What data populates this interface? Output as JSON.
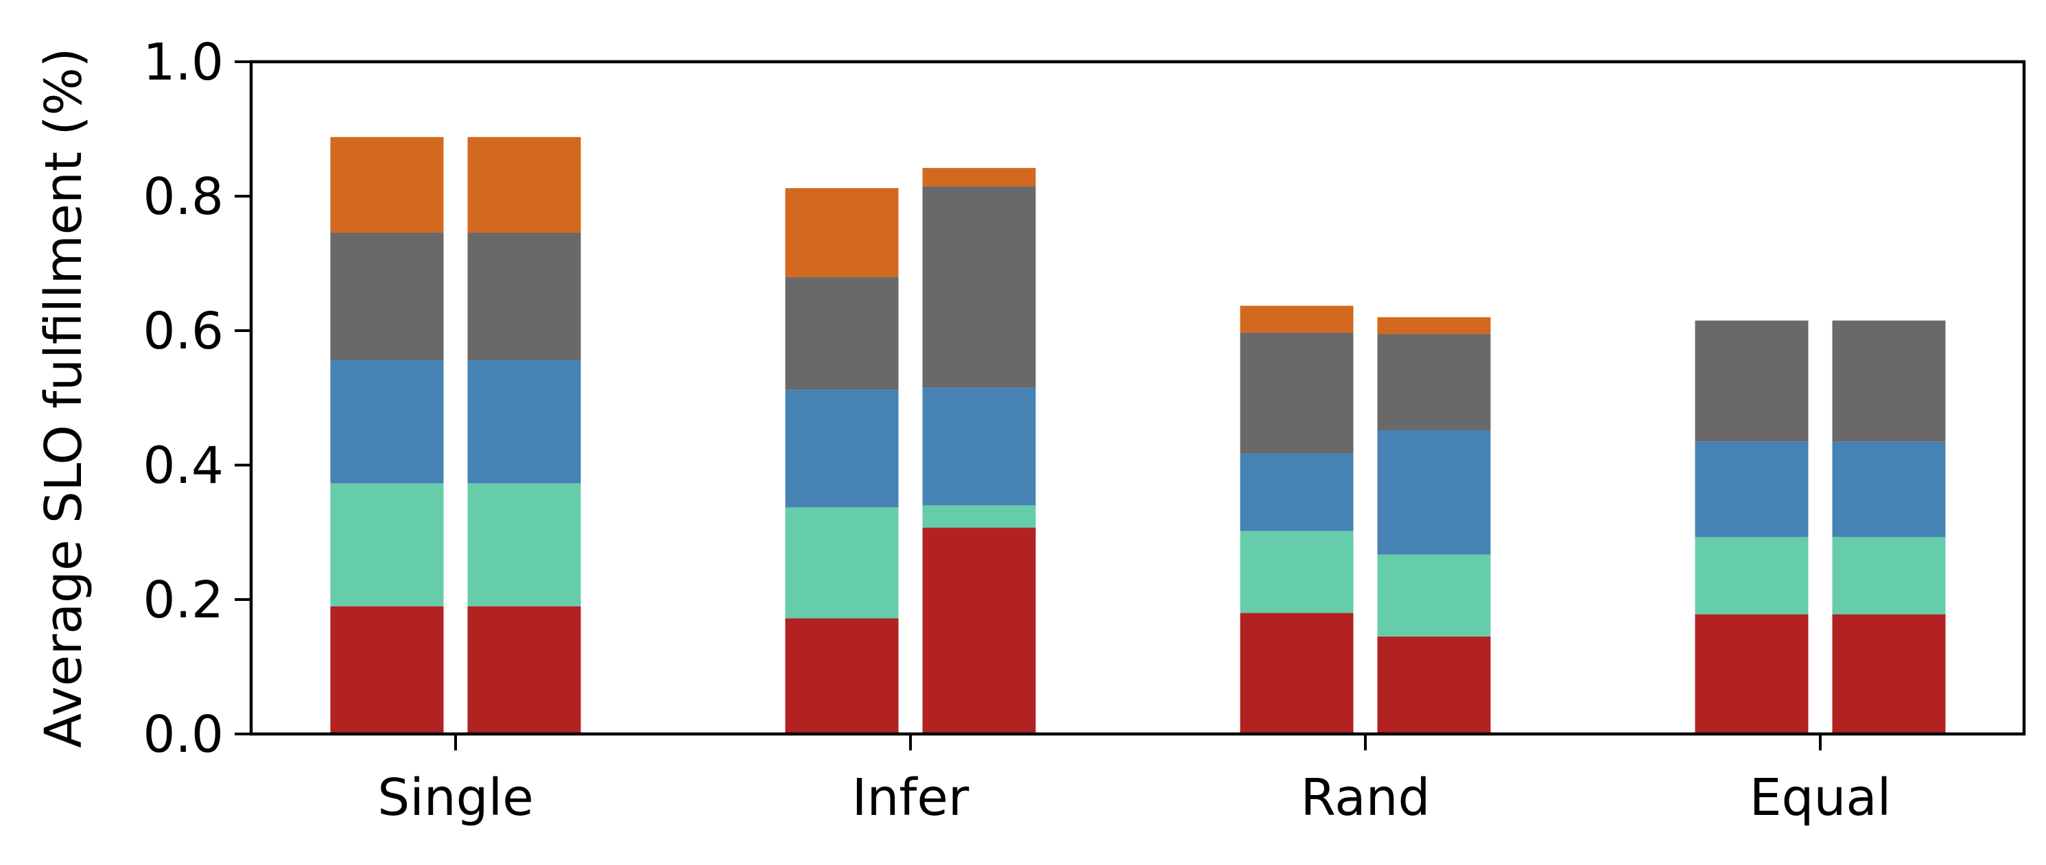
{
  "chart_data": {
    "type": "bar",
    "stacked": true,
    "bars_per_group": 2,
    "title": "",
    "xlabel": "",
    "ylabel": "Average SLO fulfillment (%)",
    "ylim": [
      0,
      1.0
    ],
    "yticks": [
      "0.0",
      "0.2",
      "0.4",
      "0.6",
      "0.8",
      "1.0"
    ],
    "categories": [
      "Single",
      "Infer",
      "Rand",
      "Equal"
    ],
    "legend": "none",
    "grid": false,
    "series": [
      {
        "color": "#b22222",
        "values": [
          [
            0.19,
            0.19
          ],
          [
            0.172,
            0.307
          ],
          [
            0.18,
            0.145
          ],
          [
            0.178,
            0.178
          ]
        ]
      },
      {
        "color": "#66cdaa",
        "values": [
          [
            0.183,
            0.183
          ],
          [
            0.165,
            0.033
          ],
          [
            0.122,
            0.122
          ],
          [
            0.115,
            0.115
          ]
        ]
      },
      {
        "color": "#4682b4",
        "values": [
          [
            0.183,
            0.183
          ],
          [
            0.175,
            0.175
          ],
          [
            0.115,
            0.185
          ],
          [
            0.142,
            0.142
          ]
        ]
      },
      {
        "color": "#696969",
        "values": [
          [
            0.19,
            0.19
          ],
          [
            0.168,
            0.3
          ],
          [
            0.18,
            0.143
          ],
          [
            0.18,
            0.18
          ]
        ]
      },
      {
        "color": "#d2691e",
        "values": [
          [
            0.142,
            0.142
          ],
          [
            0.132,
            0.027
          ],
          [
            0.04,
            0.025
          ],
          [
            0,
            0
          ]
        ]
      }
    ]
  }
}
